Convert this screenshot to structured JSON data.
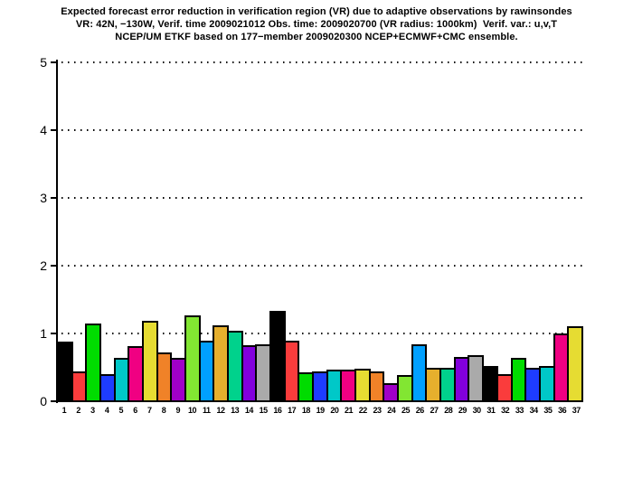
{
  "title": {
    "line1": "Expected forecast error reduction in verification region (VR) due to adaptive observations by rawinsondes",
    "line2": "VR: 42N, −130W, Verif. time 2009021012 Obs. time: 2009020700 (VR radius: 1000km)  Verif. var.: u,v,T",
    "line3": "NCEP/UM ETKF based on 177−member 2009020300 NCEP+ECMWF+CMC ensemble."
  },
  "chart_data": {
    "type": "bar",
    "title": "Expected forecast error reduction in VR due to adaptive observations by rawinsondes",
    "xlabel": "",
    "ylabel": "",
    "ylim": [
      0,
      5
    ],
    "yticks": [
      0,
      1,
      2,
      3,
      4,
      5
    ],
    "grid": "dotted-horizontal",
    "legend": "none",
    "axis_color": "#000000",
    "bar_outline_color": "#000000",
    "background_color": "#ffffff",
    "categories": [
      "1",
      "2",
      "3",
      "4",
      "5",
      "6",
      "7",
      "8",
      "9",
      "10",
      "11",
      "12",
      "13",
      "14",
      "15",
      "16",
      "17",
      "18",
      "19",
      "20",
      "21",
      "22",
      "23",
      "24",
      "25",
      "26",
      "27",
      "28",
      "29",
      "30",
      "31",
      "32",
      "33",
      "34",
      "35",
      "36",
      "37"
    ],
    "values": [
      0.86,
      0.43,
      1.13,
      0.38,
      0.63,
      0.8,
      1.17,
      0.71,
      0.63,
      1.25,
      0.88,
      1.1,
      1.02,
      0.81,
      0.83,
      1.32,
      0.88,
      0.41,
      0.43,
      0.45,
      0.45,
      0.46,
      0.42,
      0.25,
      0.37,
      0.83,
      0.48,
      0.48,
      0.64,
      0.67,
      0.51,
      0.39,
      0.63,
      0.48,
      0.51,
      0.98,
      1.09
    ],
    "palette_cycle": [
      "#000000",
      "#fa3c3c",
      "#00dc00",
      "#1e3cff",
      "#00c8c8",
      "#f00082",
      "#e6dc32",
      "#f08228",
      "#a000c8",
      "#82e632",
      "#00a0ff",
      "#e6af2d",
      "#00d28c",
      "#8200dc",
      "#aaaaaa"
    ],
    "palette_names": [
      "black",
      "red",
      "green",
      "blue",
      "cyan",
      "magenta",
      "yellow",
      "orange",
      "purple",
      "yellow-green",
      "sky-blue",
      "dark-yellow",
      "aqua-green",
      "dark-purple",
      "gray"
    ]
  }
}
